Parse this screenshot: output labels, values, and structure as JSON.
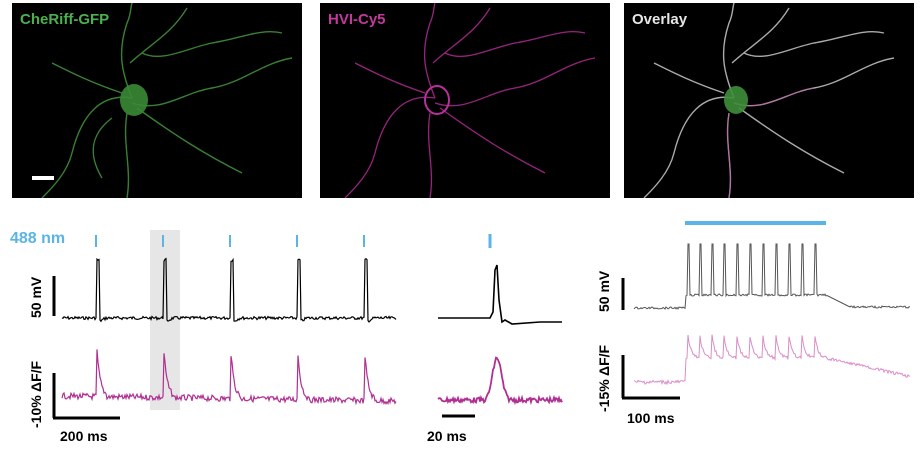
{
  "panels": [
    {
      "label": "CheRiff-GFP",
      "color": "#4caf50"
    },
    {
      "label": "HVI-Cy5",
      "color": "#c2389c"
    },
    {
      "label": "Overlay",
      "color": "#e6e6e6"
    }
  ],
  "stim_label": "488 nm",
  "colors": {
    "stim": "#5ab4e5",
    "voltage": "#000000",
    "fluorescence": "#b02f91",
    "fluor_light": "#d98ec8",
    "highlight": "#e6e6e6"
  },
  "scale_bars": {
    "left_voltage": "50 mV",
    "left_fluor": "-10% ΔF/F",
    "left_time": "200 ms",
    "middle_time": "20 ms",
    "right_voltage": "50 mV",
    "right_fluor": "-15% ΔF/F",
    "right_time": "100 ms"
  }
}
